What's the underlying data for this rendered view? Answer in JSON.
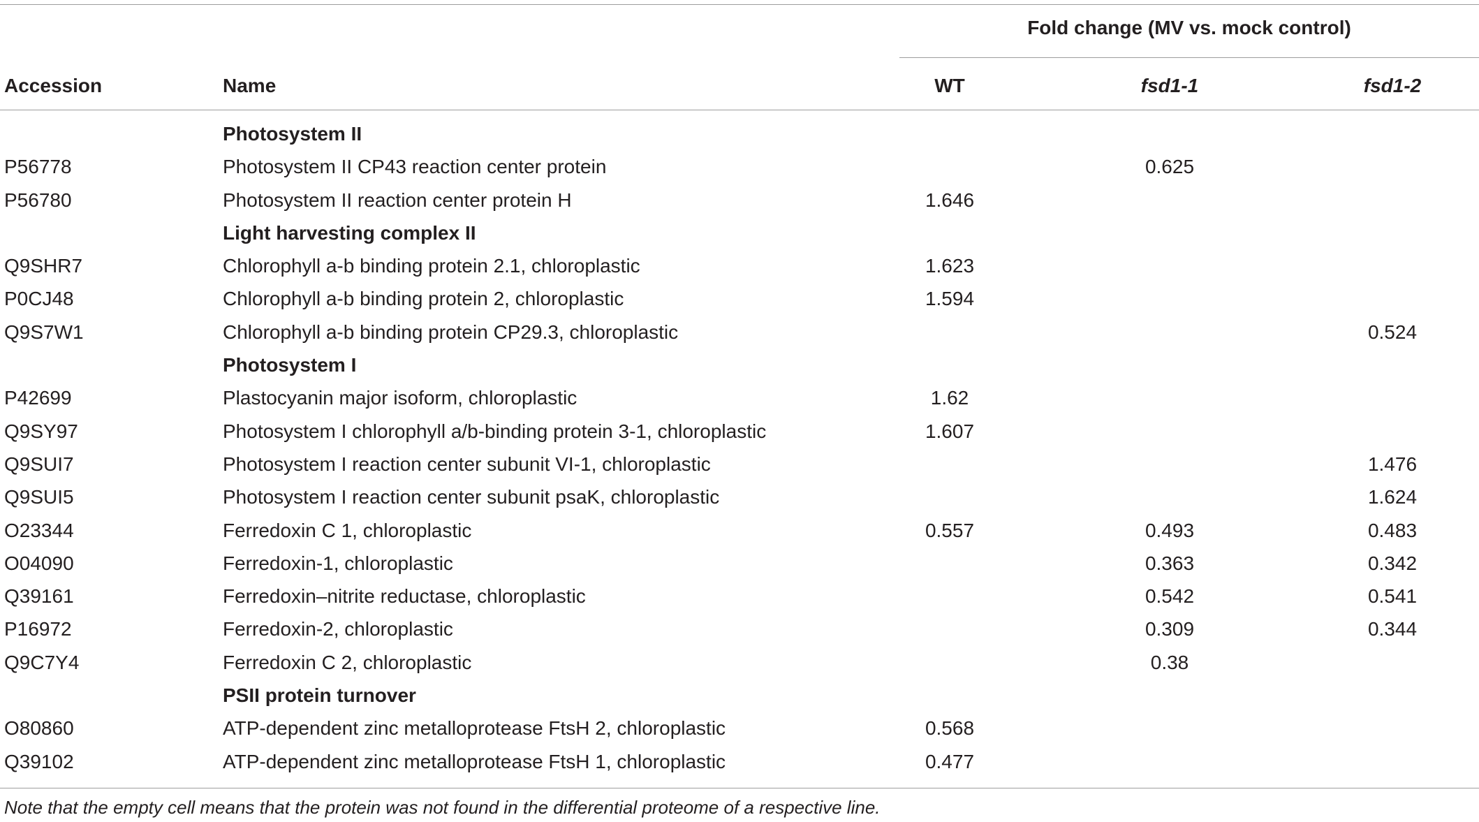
{
  "table": {
    "span_header": "Fold change (MV vs. mock control)",
    "columns": {
      "accession": "Accession",
      "name": "Name",
      "wt": "WT",
      "fsd1_1": "fsd1-1",
      "fsd1_2": "fsd1-2"
    },
    "rows": [
      {
        "type": "group",
        "name": "Photosystem II"
      },
      {
        "type": "data",
        "accession": "P56778",
        "name": "Photosystem II CP43 reaction center protein",
        "wt": "",
        "fsd1_1": "0.625",
        "fsd1_2": ""
      },
      {
        "type": "data",
        "accession": "P56780",
        "name": "Photosystem II reaction center protein H",
        "wt": "1.646",
        "fsd1_1": "",
        "fsd1_2": ""
      },
      {
        "type": "group",
        "name": "Light harvesting complex II"
      },
      {
        "type": "data",
        "accession": "Q9SHR7",
        "name": "Chlorophyll a-b binding protein 2.1, chloroplastic",
        "wt": "1.623",
        "fsd1_1": "",
        "fsd1_2": ""
      },
      {
        "type": "data",
        "accession": "P0CJ48",
        "name": "Chlorophyll a-b binding protein 2, chloroplastic",
        "wt": "1.594",
        "fsd1_1": "",
        "fsd1_2": ""
      },
      {
        "type": "data",
        "accession": "Q9S7W1",
        "name": "Chlorophyll a-b binding protein CP29.3, chloroplastic",
        "wt": "",
        "fsd1_1": "",
        "fsd1_2": "0.524"
      },
      {
        "type": "group",
        "name": "Photosystem I"
      },
      {
        "type": "data",
        "accession": "P42699",
        "name": "Plastocyanin major isoform, chloroplastic",
        "wt": "1.62",
        "fsd1_1": "",
        "fsd1_2": ""
      },
      {
        "type": "data",
        "accession": "Q9SY97",
        "name": "Photosystem I chlorophyll a/b-binding protein 3-1, chloroplastic",
        "wt": "1.607",
        "fsd1_1": "",
        "fsd1_2": ""
      },
      {
        "type": "data",
        "accession": "Q9SUI7",
        "name": "Photosystem I reaction center subunit VI-1, chloroplastic",
        "wt": "",
        "fsd1_1": "",
        "fsd1_2": "1.476"
      },
      {
        "type": "data",
        "accession": "Q9SUI5",
        "name": "Photosystem I reaction center subunit psaK, chloroplastic",
        "wt": "",
        "fsd1_1": "",
        "fsd1_2": "1.624"
      },
      {
        "type": "data",
        "accession": "O23344",
        "name": "Ferredoxin C 1, chloroplastic",
        "wt": "0.557",
        "fsd1_1": "0.493",
        "fsd1_2": "0.483"
      },
      {
        "type": "data",
        "accession": "O04090",
        "name": "Ferredoxin-1, chloroplastic",
        "wt": "",
        "fsd1_1": "0.363",
        "fsd1_2": "0.342"
      },
      {
        "type": "data",
        "accession": "Q39161",
        "name": "Ferredoxin–nitrite reductase, chloroplastic",
        "wt": "",
        "fsd1_1": "0.542",
        "fsd1_2": "0.541"
      },
      {
        "type": "data",
        "accession": "P16972",
        "name": "Ferredoxin-2, chloroplastic",
        "wt": "",
        "fsd1_1": "0.309",
        "fsd1_2": "0.344"
      },
      {
        "type": "data",
        "accession": "Q9C7Y4",
        "name": "Ferredoxin C 2, chloroplastic",
        "wt": "",
        "fsd1_1": "0.38",
        "fsd1_2": ""
      },
      {
        "type": "group",
        "name": "PSII protein turnover"
      },
      {
        "type": "data",
        "accession": "O80860",
        "name": "ATP-dependent zinc metalloprotease FtsH 2, chloroplastic",
        "wt": "0.568",
        "fsd1_1": "",
        "fsd1_2": ""
      },
      {
        "type": "data",
        "accession": "Q39102",
        "name": "ATP-dependent zinc metalloprotease FtsH 1, chloroplastic",
        "wt": "0.477",
        "fsd1_1": "",
        "fsd1_2": ""
      }
    ],
    "note": "Note that the empty cell means that the protein was not found in the differential proteome of a respective line."
  }
}
